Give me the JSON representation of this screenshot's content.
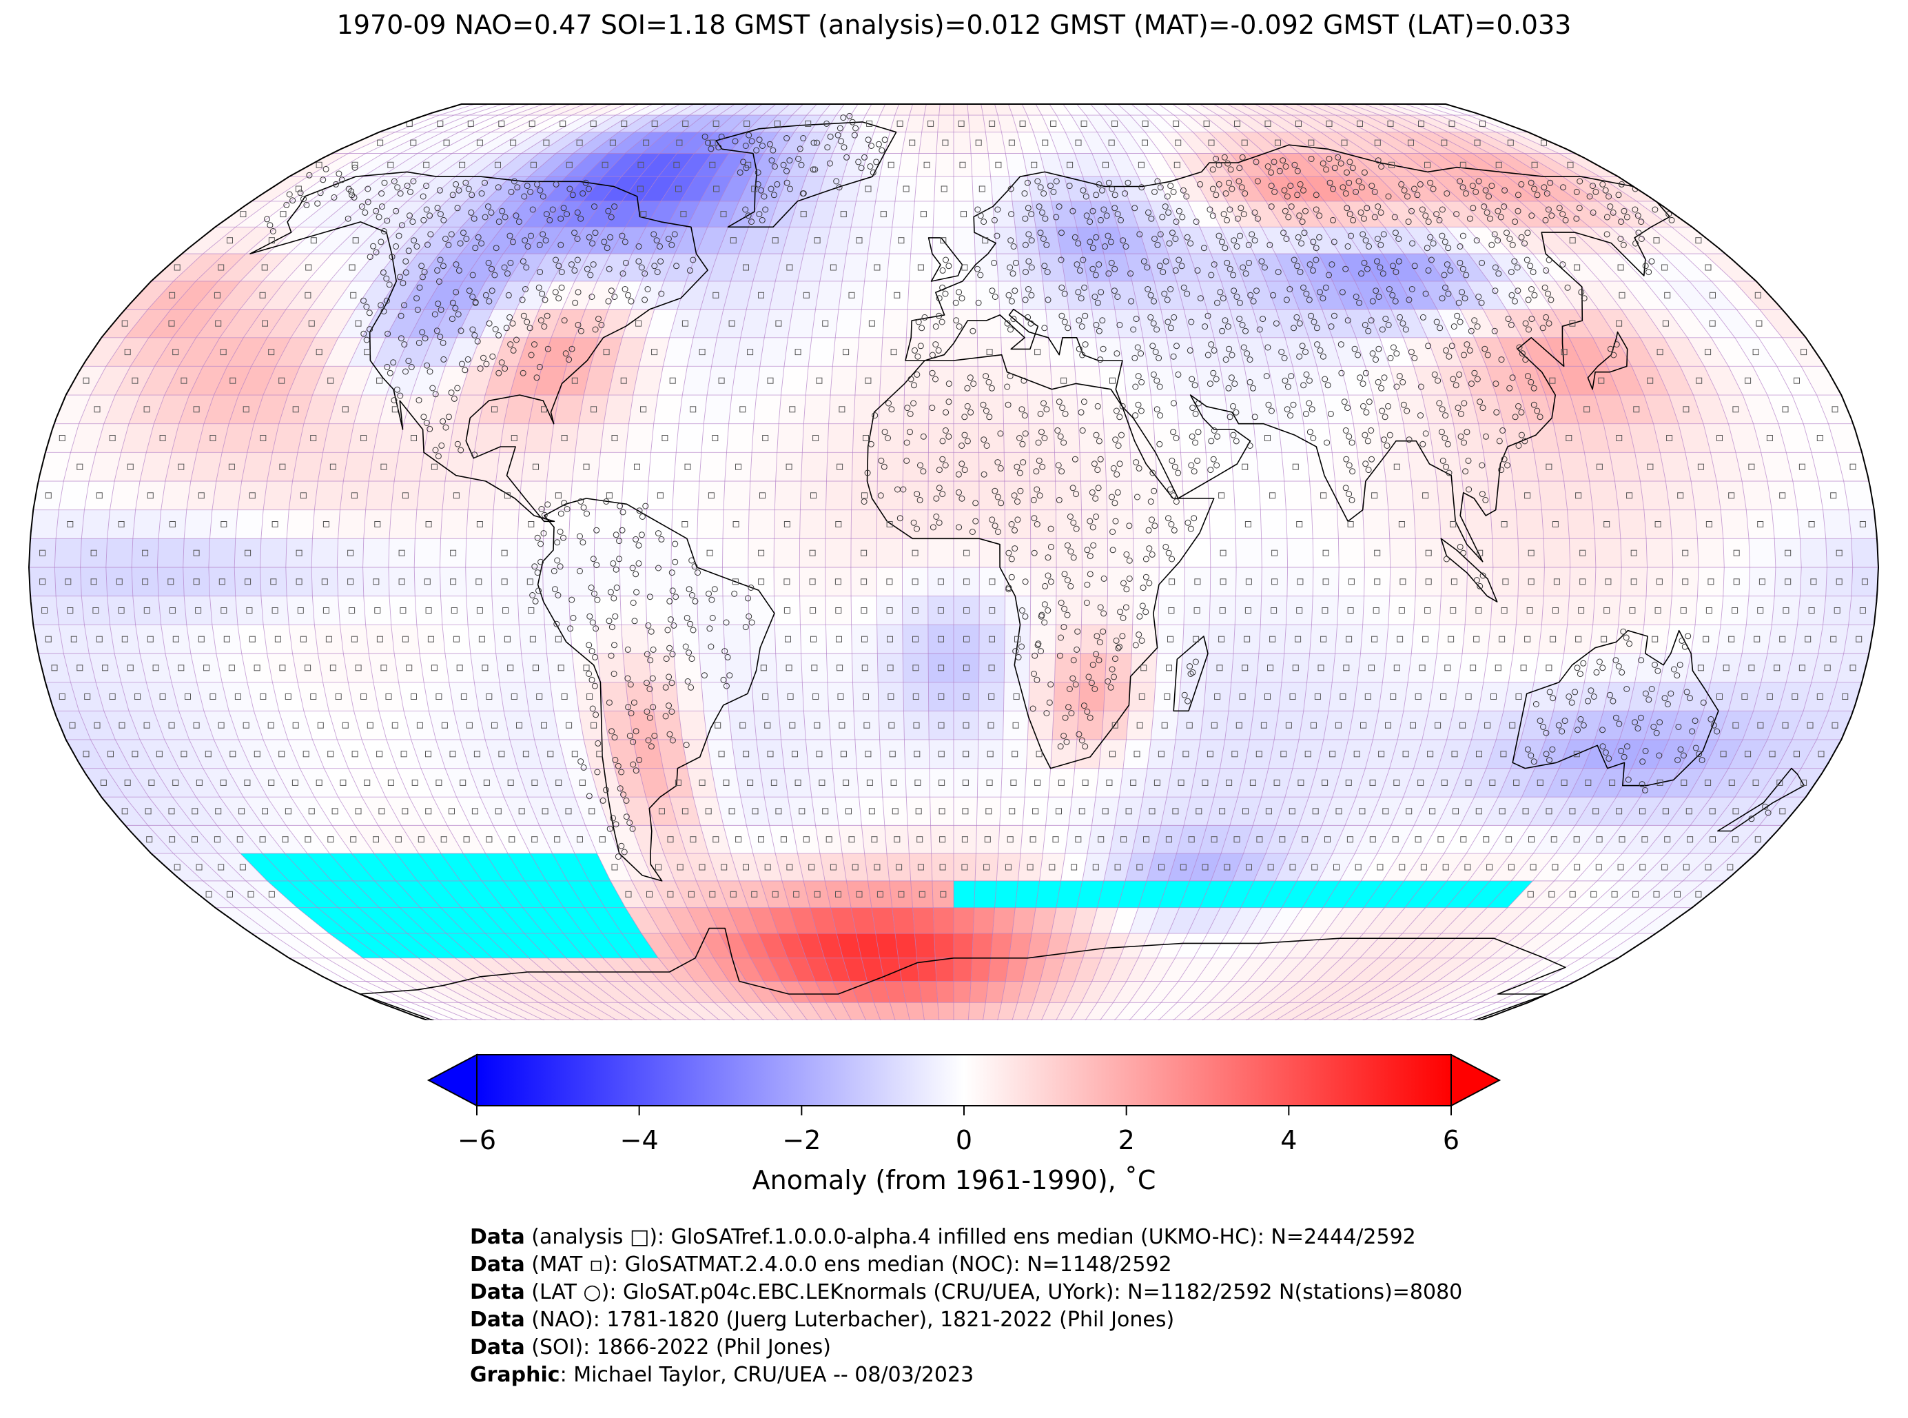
{
  "title": "1970-09 NAO=0.47 SOI=1.18 GMST (analysis)=0.012 GMST (MAT)=-0.092 GMST (LAT)=0.033",
  "colorbar": {
    "ticks": [
      "−6",
      "−4",
      "−2",
      "0",
      "2",
      "4",
      "6"
    ],
    "tick_values": [
      -6,
      -4,
      -2,
      0,
      2,
      4,
      6
    ],
    "range": [
      -6,
      6
    ],
    "extend": "both",
    "label": "Anomaly (from 1961-1990), ˚C",
    "cmap": [
      "#0000ff",
      "#ffffff",
      "#ff0000"
    ]
  },
  "colors": {
    "missing_sea_ice": "#00ffff",
    "grid": "#b07cc6",
    "coast": "#000000"
  },
  "credits": [
    {
      "head": "Data",
      "text": " (analysis □): GloSATref.1.0.0.0-alpha.4 infilled ens median (UKMO-HC): N=2444/2592"
    },
    {
      "head": "Data",
      "text": " (MAT ▫): GloSATMAT.2.4.0.0 ens median (NOC): N=1148/2592"
    },
    {
      "head": "Data",
      "text": " (LAT ○): GloSAT.p04c.EBC.LEKnormals (CRU/UEA, UYork): N=1182/2592 N(stations)=8080"
    },
    {
      "head": "Data",
      "text": " (NAO): 1781-1820 (Juerg Luterbacher), 1821-2022 (Phil Jones)"
    },
    {
      "head": "Data",
      "text": " (SOI): 1866-2022 (Phil Jones)"
    },
    {
      "head": "Graphic",
      "text": ": Michael Taylor, CRU/UEA -- 08/03/2023"
    }
  ],
  "map": {
    "projection": "Robinson",
    "grid_resolution_deg": 5,
    "anomaly_regions": [
      {
        "region": "Arctic Canada",
        "lon": [
          -110,
          -60
        ],
        "lat": [
          60,
          80
        ],
        "anomaly": -3.5
      },
      {
        "region": "Western North America",
        "lon": [
          -125,
          -100
        ],
        "lat": [
          35,
          55
        ],
        "anomaly": -2.0
      },
      {
        "region": "Eastern United States",
        "lon": [
          -95,
          -70
        ],
        "lat": [
          28,
          45
        ],
        "anomaly": 2.2
      },
      {
        "region": "Northeast Pacific",
        "lon": [
          -165,
          -130
        ],
        "lat": [
          25,
          45
        ],
        "anomaly": 1.5
      },
      {
        "region": "North Central Pacific",
        "lon": [
          180,
          200
        ],
        "lat": [
          40,
          55
        ],
        "anomaly": 1.8
      },
      {
        "region": "Northern Siberia",
        "lon": [
          70,
          110
        ],
        "lat": [
          60,
          75
        ],
        "anomaly": 2.5
      },
      {
        "region": "Northeast Siberia",
        "lon": [
          130,
          175
        ],
        "lat": [
          60,
          78
        ],
        "anomaly": 2.0
      },
      {
        "region": "Central Siberia",
        "lon": [
          80,
          120
        ],
        "lat": [
          45,
          58
        ],
        "anomaly": -2.5
      },
      {
        "region": "Northwest Russia",
        "lon": [
          20,
          45
        ],
        "lat": [
          50,
          65
        ],
        "anomaly": -1.5
      },
      {
        "region": "East China / Japan",
        "lon": [
          110,
          145
        ],
        "lat": [
          28,
          45
        ],
        "anomaly": 1.8
      },
      {
        "region": "Tropical Central Pacific",
        "lon": [
          -175,
          -110
        ],
        "lat": [
          -5,
          5
        ],
        "anomaly": -1.2
      },
      {
        "region": "Tropical South Atlantic",
        "lon": [
          -10,
          10
        ],
        "lat": [
          -25,
          -5
        ],
        "anomaly": -1.5
      },
      {
        "region": "Argentina",
        "lon": [
          -70,
          -55
        ],
        "lat": [
          -45,
          -20
        ],
        "anomaly": 2.3
      },
      {
        "region": "Southern Africa",
        "lon": [
          20,
          35
        ],
        "lat": [
          -30,
          -15
        ],
        "anomaly": 2.0
      },
      {
        "region": "Southern Australia",
        "lon": [
          115,
          155
        ],
        "lat": [
          -40,
          -25
        ],
        "anomaly": -1.8
      },
      {
        "region": "Antarctic Peninsula / Weddell",
        "lon": [
          -60,
          10
        ],
        "lat": [
          -78,
          -60
        ],
        "anomaly": 4.5
      },
      {
        "region": "Southern Ocean (Indian sector)",
        "lon": [
          40,
          70
        ],
        "lat": [
          -60,
          -50
        ],
        "anomaly": -1.5
      }
    ],
    "missing_regions": [
      {
        "region": "South Pacific sector",
        "lon": [
          -160,
          -80
        ],
        "lat": [
          -70,
          -50
        ]
      },
      {
        "region": "South Indian Ocean sector",
        "lon": [
          0,
          135
        ],
        "lat": [
          -62,
          -55
        ]
      }
    ]
  }
}
